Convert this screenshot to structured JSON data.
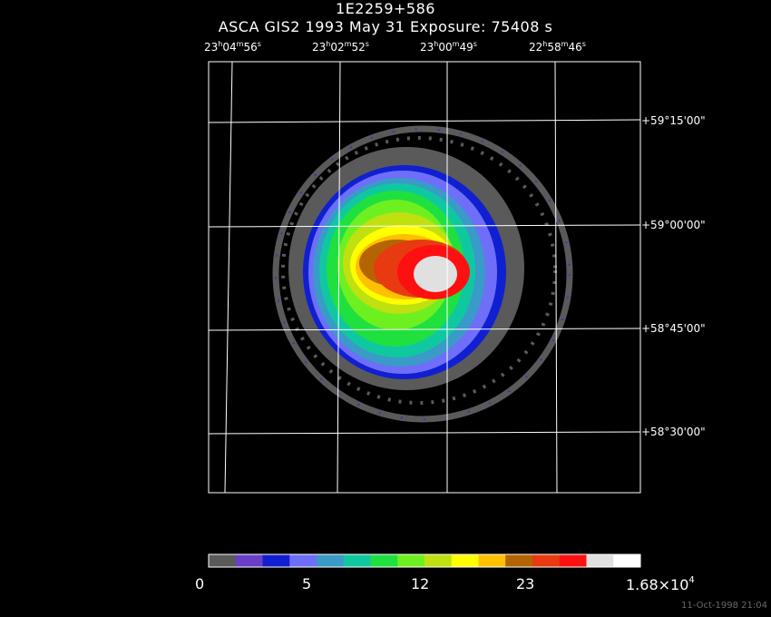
{
  "header": {
    "object_name": "1E2259+586",
    "observation_line": "ASCA GIS2   1993 May 31   Exposure: 75408 s"
  },
  "ra_labels": [
    {
      "h": "23",
      "m": "04",
      "s": "56"
    },
    {
      "h": "23",
      "m": "02",
      "s": "52"
    },
    {
      "h": "23",
      "m": "00",
      "s": "49"
    },
    {
      "h": "22",
      "m": "58",
      "s": "46"
    }
  ],
  "unit_symbols": {
    "h": "h",
    "m": "m",
    "s": "s"
  },
  "dec_labels": [
    "+59°15'00\"",
    "+59°00'00\"",
    "+58°45'00\"",
    "+58°30'00\""
  ],
  "colorbar": {
    "colors": [
      "#5a5a5a",
      "#6a3fc8",
      "#1020d0",
      "#6e6ef8",
      "#3a9ac8",
      "#10c8a0",
      "#20e040",
      "#6ef020",
      "#c0e010",
      "#ffff00",
      "#ffc000",
      "#b46400",
      "#e83a10",
      "#ff1010",
      "#e0e0e0",
      "#ffffff"
    ],
    "tick_labels": [
      "0",
      "5",
      "12",
      "23"
    ],
    "max_label_base": "1.68×10",
    "max_label_exp": "4"
  },
  "timestamp": "11-Oct-1998 21:04"
}
